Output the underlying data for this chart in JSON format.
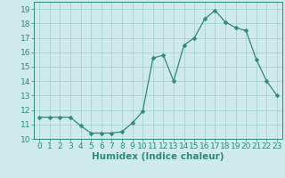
{
  "xlabel": "Humidex (Indice chaleur)",
  "x": [
    0,
    1,
    2,
    3,
    4,
    5,
    6,
    7,
    8,
    9,
    10,
    11,
    12,
    13,
    14,
    15,
    16,
    17,
    18,
    19,
    20,
    21,
    22,
    23
  ],
  "y": [
    11.5,
    11.5,
    11.5,
    11.5,
    10.9,
    10.4,
    10.4,
    10.4,
    10.5,
    11.1,
    11.9,
    15.6,
    15.8,
    14.0,
    16.5,
    17.0,
    18.3,
    18.9,
    18.1,
    17.7,
    17.5,
    15.5,
    14.0,
    13.0
  ],
  "line_color": "#2e8b74",
  "marker": "D",
  "marker_size": 2.5,
  "bg_color": "#ceeaea",
  "grid_color": "#a8d4d0",
  "ylim": [
    10,
    19.5
  ],
  "yticks": [
    10,
    11,
    12,
    13,
    14,
    15,
    16,
    17,
    18,
    19
  ],
  "xlim": [
    -0.5,
    23.5
  ],
  "xticks": [
    0,
    1,
    2,
    3,
    4,
    5,
    6,
    7,
    8,
    9,
    10,
    11,
    12,
    13,
    14,
    15,
    16,
    17,
    18,
    19,
    20,
    21,
    22,
    23
  ],
  "tick_fontsize": 6.5,
  "label_fontsize": 7.5
}
